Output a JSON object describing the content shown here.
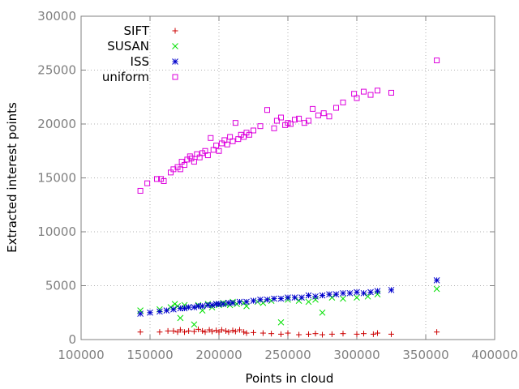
{
  "chart_data": {
    "type": "scatter",
    "xlabel": "Points in cloud",
    "ylabel": "Extracted interest points",
    "xlim": [
      100000,
      400000
    ],
    "ylim": [
      0,
      30000
    ],
    "xticks": [
      100000,
      150000,
      200000,
      250000,
      300000,
      350000,
      400000
    ],
    "yticks": [
      0,
      5000,
      10000,
      15000,
      20000,
      25000,
      30000
    ],
    "xtick_labels": [
      "100000",
      "150000",
      "200000",
      "250000",
      "300000",
      "350000",
      "400000"
    ],
    "ytick_labels": [
      "0",
      "5000",
      "10000",
      "15000",
      "20000",
      "25000",
      "30000"
    ],
    "grid": true,
    "legend_position": "top-left",
    "series": [
      {
        "name": "SIFT",
        "marker": "plus",
        "color": "#cc0000",
        "points": [
          [
            143000,
            700
          ],
          [
            157000,
            700
          ],
          [
            163000,
            800
          ],
          [
            167000,
            800
          ],
          [
            170000,
            700
          ],
          [
            172000,
            900
          ],
          [
            175000,
            700
          ],
          [
            178000,
            800
          ],
          [
            182000,
            750
          ],
          [
            185000,
            950
          ],
          [
            188000,
            800
          ],
          [
            190000,
            700
          ],
          [
            193000,
            900
          ],
          [
            195000,
            750
          ],
          [
            198000,
            850
          ],
          [
            200000,
            700
          ],
          [
            202000,
            900
          ],
          [
            205000,
            800
          ],
          [
            207000,
            700
          ],
          [
            210000,
            850
          ],
          [
            212000,
            750
          ],
          [
            215000,
            900
          ],
          [
            218000,
            700
          ],
          [
            220000,
            600
          ],
          [
            225000,
            650
          ],
          [
            232000,
            600
          ],
          [
            238000,
            550
          ],
          [
            245000,
            500
          ],
          [
            250000,
            600
          ],
          [
            258000,
            450
          ],
          [
            265000,
            500
          ],
          [
            270000,
            550
          ],
          [
            275000,
            450
          ],
          [
            282000,
            500
          ],
          [
            290000,
            550
          ],
          [
            300000,
            500
          ],
          [
            305000,
            550
          ],
          [
            312000,
            500
          ],
          [
            315000,
            600
          ],
          [
            325000,
            500
          ],
          [
            358000,
            700
          ]
        ]
      },
      {
        "name": "SUSAN",
        "marker": "cross",
        "color": "#00e000",
        "points": [
          [
            143000,
            2700
          ],
          [
            157000,
            2800
          ],
          [
            165000,
            3000
          ],
          [
            168000,
            3300
          ],
          [
            170000,
            3100
          ],
          [
            172000,
            2000
          ],
          [
            175000,
            3200
          ],
          [
            178000,
            3000
          ],
          [
            182000,
            1400
          ],
          [
            185000,
            3200
          ],
          [
            188000,
            2700
          ],
          [
            192000,
            3300
          ],
          [
            195000,
            3000
          ],
          [
            198000,
            3300
          ],
          [
            200000,
            3200
          ],
          [
            203000,
            3400
          ],
          [
            205000,
            3300
          ],
          [
            208000,
            3200
          ],
          [
            210000,
            3500
          ],
          [
            213000,
            3300
          ],
          [
            218000,
            3400
          ],
          [
            220000,
            3100
          ],
          [
            228000,
            3500
          ],
          [
            232000,
            3400
          ],
          [
            238000,
            3600
          ],
          [
            245000,
            1600
          ],
          [
            250000,
            3700
          ],
          [
            258000,
            3600
          ],
          [
            265000,
            3500
          ],
          [
            270000,
            3700
          ],
          [
            275000,
            2500
          ],
          [
            282000,
            3900
          ],
          [
            290000,
            3800
          ],
          [
            300000,
            3900
          ],
          [
            308000,
            4000
          ],
          [
            315000,
            4200
          ],
          [
            358000,
            4700
          ]
        ]
      },
      {
        "name": "ISS",
        "marker": "star",
        "color": "#0000cc",
        "points": [
          [
            143000,
            2400
          ],
          [
            150000,
            2500
          ],
          [
            157000,
            2600
          ],
          [
            162000,
            2700
          ],
          [
            167000,
            2800
          ],
          [
            172000,
            2900
          ],
          [
            175000,
            2900
          ],
          [
            178000,
            3000
          ],
          [
            182000,
            3000
          ],
          [
            185000,
            3100
          ],
          [
            188000,
            3100
          ],
          [
            192000,
            3200
          ],
          [
            195000,
            3200
          ],
          [
            198000,
            3300
          ],
          [
            200000,
            3300
          ],
          [
            203000,
            3300
          ],
          [
            207000,
            3400
          ],
          [
            210000,
            3400
          ],
          [
            215000,
            3500
          ],
          [
            220000,
            3500
          ],
          [
            225000,
            3600
          ],
          [
            230000,
            3700
          ],
          [
            235000,
            3700
          ],
          [
            240000,
            3800
          ],
          [
            245000,
            3800
          ],
          [
            250000,
            3900
          ],
          [
            255000,
            3900
          ],
          [
            260000,
            3900
          ],
          [
            265000,
            4100
          ],
          [
            270000,
            4000
          ],
          [
            275000,
            4100
          ],
          [
            280000,
            4200
          ],
          [
            285000,
            4200
          ],
          [
            290000,
            4300
          ],
          [
            295000,
            4300
          ],
          [
            300000,
            4400
          ],
          [
            305000,
            4300
          ],
          [
            310000,
            4400
          ],
          [
            315000,
            4500
          ],
          [
            325000,
            4600
          ],
          [
            358000,
            5500
          ]
        ]
      },
      {
        "name": "uniform",
        "marker": "square",
        "color": "#dd00dd",
        "points": [
          [
            143000,
            13800
          ],
          [
            148000,
            14500
          ],
          [
            155000,
            14900
          ],
          [
            158000,
            14900
          ],
          [
            160000,
            14700
          ],
          [
            165000,
            15500
          ],
          [
            167000,
            15800
          ],
          [
            170000,
            16000
          ],
          [
            172000,
            15800
          ],
          [
            173000,
            16500
          ],
          [
            175000,
            16200
          ],
          [
            177000,
            16700
          ],
          [
            179000,
            17000
          ],
          [
            180000,
            16800
          ],
          [
            182000,
            16500
          ],
          [
            184000,
            17200
          ],
          [
            186000,
            16900
          ],
          [
            188000,
            17300
          ],
          [
            190000,
            17500
          ],
          [
            192000,
            17100
          ],
          [
            194000,
            18700
          ],
          [
            196000,
            17600
          ],
          [
            198000,
            18000
          ],
          [
            200000,
            17500
          ],
          [
            202000,
            18200
          ],
          [
            204000,
            18500
          ],
          [
            206000,
            18100
          ],
          [
            208000,
            18800
          ],
          [
            210000,
            18400
          ],
          [
            212000,
            20100
          ],
          [
            214000,
            18600
          ],
          [
            216000,
            19000
          ],
          [
            218000,
            18800
          ],
          [
            220000,
            19200
          ],
          [
            222000,
            19000
          ],
          [
            225000,
            19400
          ],
          [
            230000,
            19800
          ],
          [
            235000,
            21300
          ],
          [
            240000,
            19600
          ],
          [
            242000,
            20300
          ],
          [
            245000,
            20600
          ],
          [
            248000,
            19900
          ],
          [
            250000,
            20100
          ],
          [
            252000,
            20000
          ],
          [
            255000,
            20400
          ],
          [
            258000,
            20500
          ],
          [
            262000,
            20100
          ],
          [
            265000,
            20300
          ],
          [
            268000,
            21400
          ],
          [
            272000,
            20800
          ],
          [
            276000,
            21000
          ],
          [
            280000,
            20700
          ],
          [
            285000,
            21500
          ],
          [
            290000,
            22000
          ],
          [
            298000,
            22800
          ],
          [
            300000,
            22400
          ],
          [
            305000,
            23000
          ],
          [
            310000,
            22700
          ],
          [
            315000,
            23100
          ],
          [
            325000,
            22900
          ],
          [
            358000,
            25900
          ]
        ]
      }
    ]
  },
  "style": {
    "tick_color": "#808080",
    "grid_color": "#b0b0b0"
  }
}
